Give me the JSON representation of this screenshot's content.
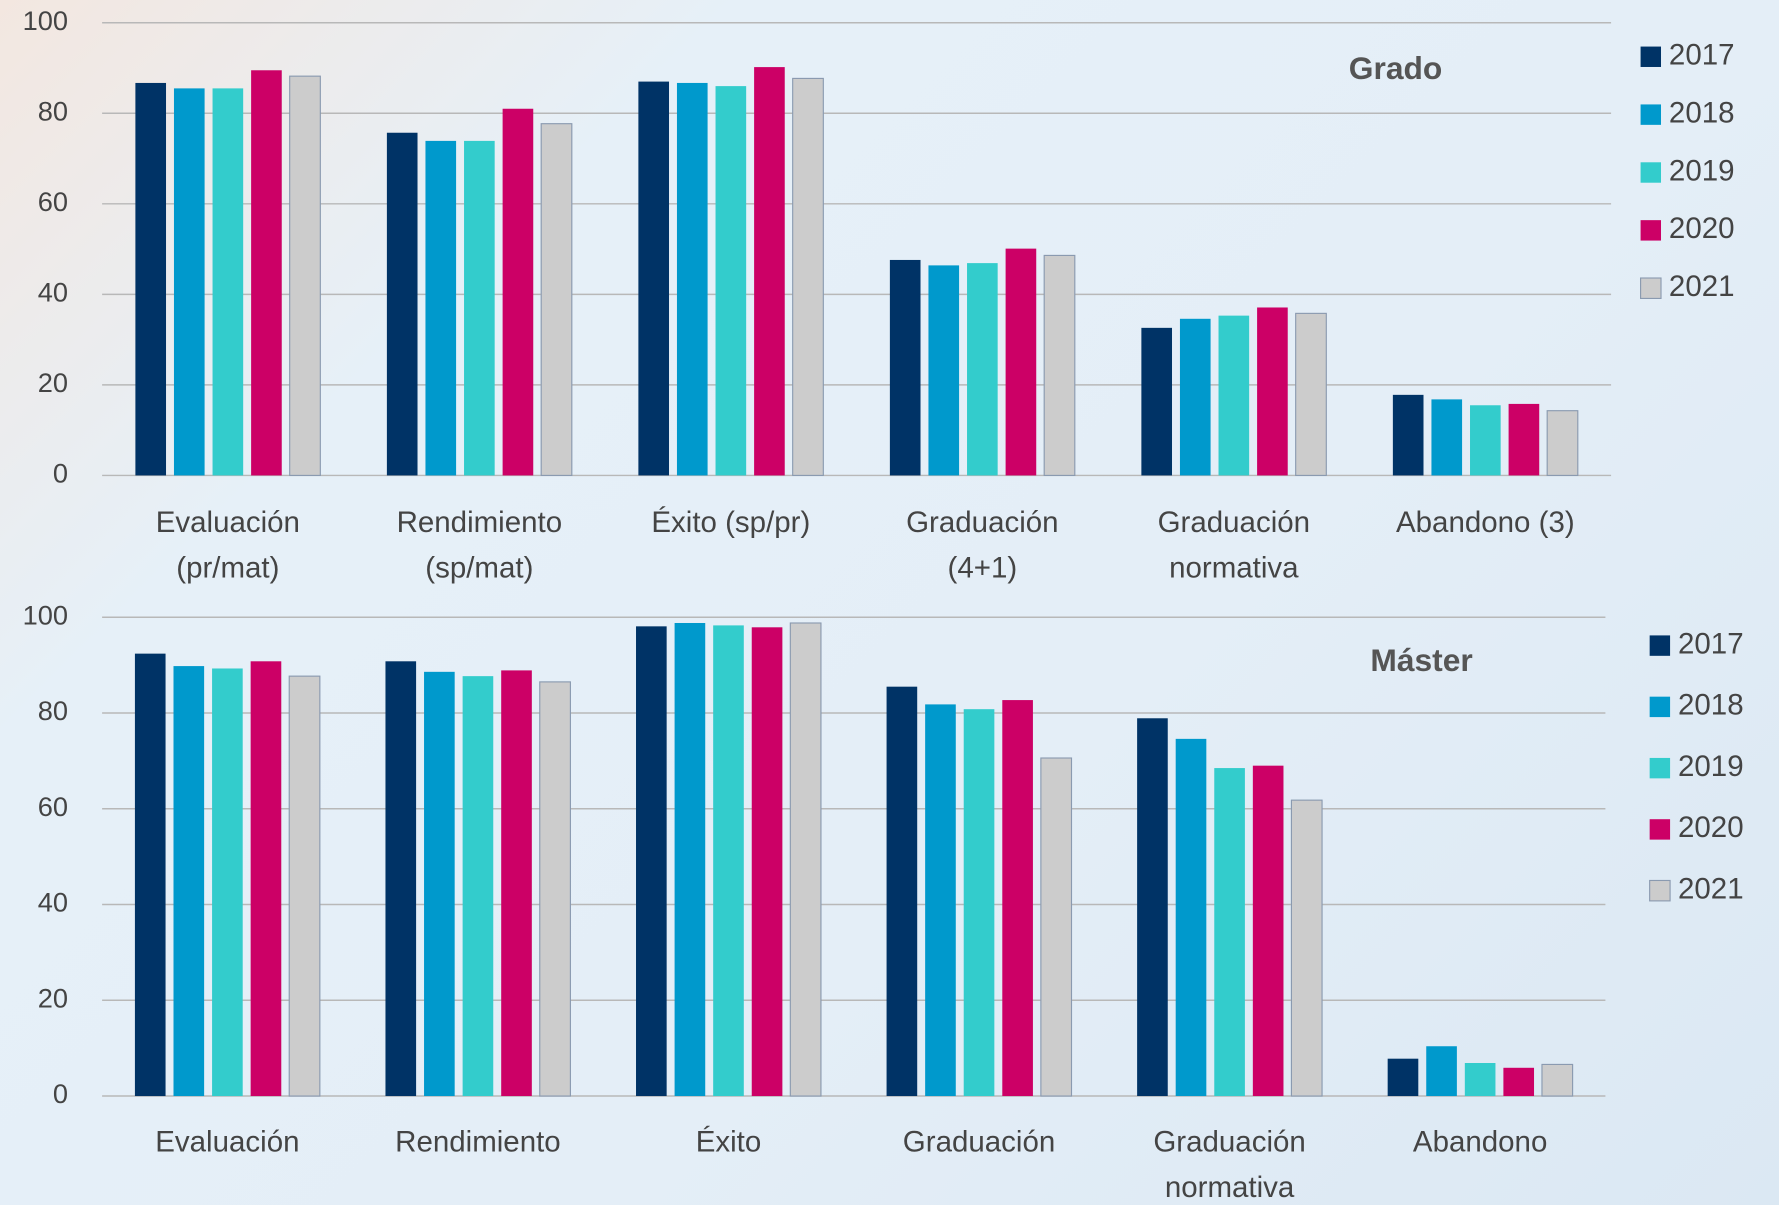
{
  "chart_data": [
    {
      "type": "bar",
      "title": "Grado",
      "categories": [
        [
          "Evaluación",
          "(pr/mat)"
        ],
        [
          "Rendimiento",
          "(sp/mat)"
        ],
        [
          "Éxito (sp/pr)"
        ],
        [
          "Graduación",
          "(4+1)"
        ],
        [
          "Graduación",
          "normativa"
        ],
        [
          "Abandono (3)"
        ]
      ],
      "series": [
        {
          "name": "2017",
          "color": "#003366",
          "values": [
            86.7,
            75.7,
            87,
            47.6,
            32.6,
            17.8
          ]
        },
        {
          "name": "2018",
          "color": "#0099cc",
          "values": [
            85.5,
            73.9,
            86.7,
            46.4,
            34.6,
            16.8
          ]
        },
        {
          "name": "2019",
          "color": "#33cccc",
          "values": [
            85.5,
            73.9,
            86,
            46.9,
            35.3,
            15.5
          ]
        },
        {
          "name": "2020",
          "color": "#cc0066",
          "values": [
            89.5,
            81,
            90.2,
            50.1,
            37.1,
            15.8
          ]
        },
        {
          "name": "2021",
          "color": "#cccccc",
          "values": [
            88.2,
            77.7,
            87.7,
            48.6,
            35.8,
            14.3
          ]
        }
      ],
      "ylim": [
        0,
        100
      ],
      "yticks": [
        0,
        20,
        40,
        60,
        80,
        100
      ],
      "grid": true,
      "legend": "right"
    },
    {
      "type": "bar",
      "title": "Máster",
      "categories": [
        [
          "Evaluación"
        ],
        [
          "Rendimiento"
        ],
        [
          "Éxito"
        ],
        [
          "Graduación"
        ],
        [
          "Graduación",
          "normativa"
        ],
        [
          "Abandono"
        ]
      ],
      "series": [
        {
          "name": "2017",
          "color": "#003366",
          "values": [
            92.4,
            90.8,
            98.1,
            85.5,
            78.9,
            7.8
          ]
        },
        {
          "name": "2018",
          "color": "#0099cc",
          "values": [
            89.8,
            88.6,
            98.8,
            81.8,
            74.6,
            10.4
          ]
        },
        {
          "name": "2019",
          "color": "#33cccc",
          "values": [
            89.3,
            87.7,
            98.3,
            80.8,
            68.5,
            6.9
          ]
        },
        {
          "name": "2020",
          "color": "#cc0066",
          "values": [
            90.8,
            88.9,
            97.9,
            82.7,
            69,
            5.9
          ]
        },
        {
          "name": "2021",
          "color": "#cccccc",
          "values": [
            87.7,
            86.5,
            98.8,
            70.6,
            61.8,
            6.6
          ]
        }
      ],
      "ylim": [
        0,
        100
      ],
      "yticks": [
        0,
        20,
        40,
        60,
        80,
        100
      ],
      "grid": true,
      "legend": "right"
    }
  ]
}
